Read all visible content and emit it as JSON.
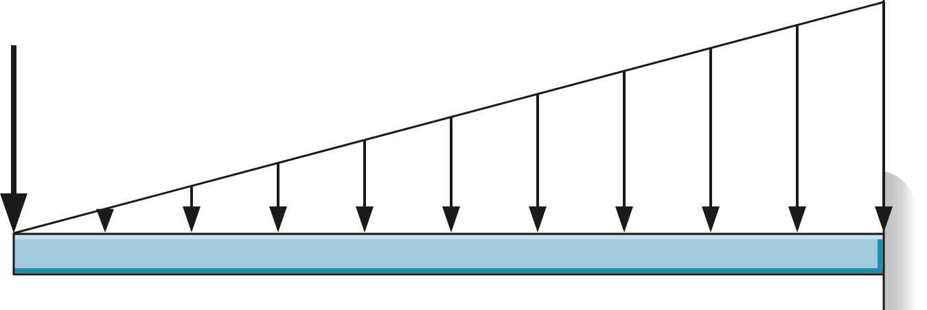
{
  "diagram": {
    "type": "cantilever-beam-load",
    "point_load": {
      "present": true
    },
    "distributed_load": {
      "shape": "triangular",
      "increasing_toward": "wall",
      "arrow_count": 10
    },
    "beam": {
      "fill_color": "#a3cbdc",
      "highlight_color": "#c6e0ea",
      "shadow_color": "#1f8fab"
    },
    "wall": {
      "support": "fixed",
      "shade_color": "#d4d4d4"
    },
    "stroke_color": "#1a1a1a"
  }
}
